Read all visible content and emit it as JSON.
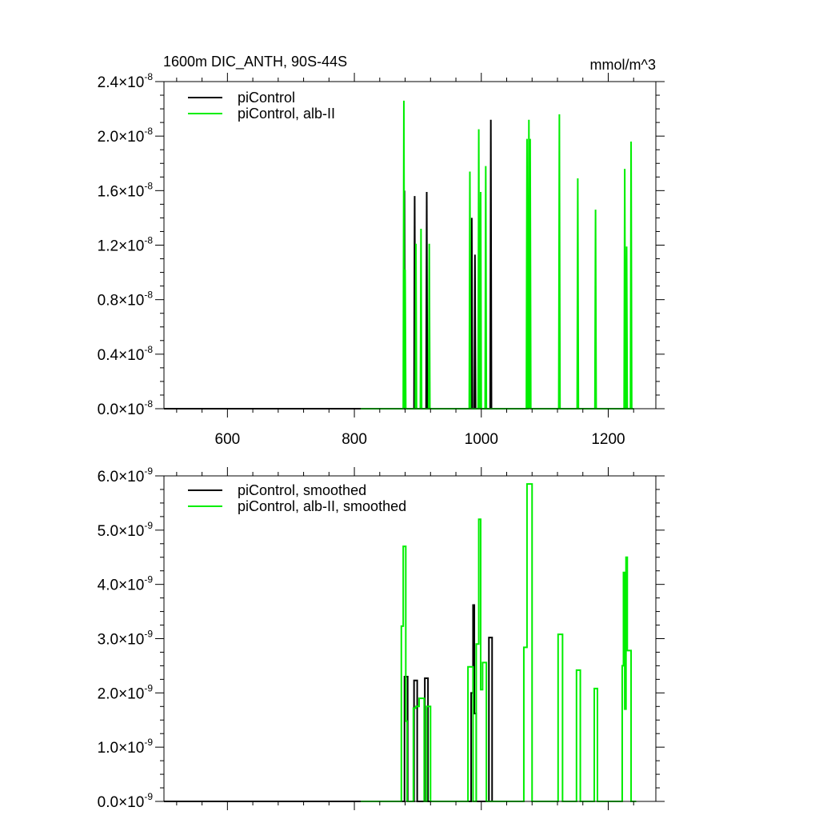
{
  "chart_data": [
    {
      "type": "line",
      "title_left": "1600m DIC_ANTH, 90S-44S",
      "title_right": "mmol/m^3",
      "xlim": [
        500,
        1275
      ],
      "x_ticks": [
        600,
        800,
        1000,
        1200
      ],
      "x_tick_labels": [
        "600",
        "800",
        "1000",
        "1200"
      ],
      "ylim": [
        0,
        2.4e-08
      ],
      "y_ticks": [
        0,
        4e-09,
        8e-09,
        1.2e-08,
        1.6e-08,
        2e-08,
        2.4e-08
      ],
      "y_tick_mantissas": [
        "0.0",
        "0.4",
        "0.8",
        "1.2",
        "1.6",
        "2.0",
        "2.4"
      ],
      "y_tick_times": "×10",
      "y_tick_exponent": "-8",
      "legend_position": "top-left",
      "line_start": 500,
      "line_end": 1250,
      "series": [
        {
          "name": "piControl",
          "color": "#000000",
          "range": [
            500,
            1020
          ],
          "spikes": [
            [
              879,
              1.6e-08
            ],
            [
              895,
              1.56e-08
            ],
            [
              914,
              1.59e-08
            ],
            [
              985,
              1.4e-08
            ],
            [
              990,
              1.13e-08
            ],
            [
              1015,
              2.12e-08
            ]
          ]
        },
        {
          "name": "piControl, alb-II",
          "color": "#00ee00",
          "range": [
            810,
            1240
          ],
          "spikes": [
            [
              878,
              2.26e-08
            ],
            [
              880,
              1.02e-08
            ],
            [
              897,
              1.21e-08
            ],
            [
              905,
              1.32e-08
            ],
            [
              918,
              1.21e-08
            ],
            [
              982,
              1.74e-08
            ],
            [
              996,
              2.05e-08
            ],
            [
              999,
              1.59e-08
            ],
            [
              1007,
              1.78e-08
            ],
            [
              1072,
              1.98e-08
            ],
            [
              1075,
              2.12e-08
            ],
            [
              1077,
              1.98e-08
            ],
            [
              1123,
              2.16e-08
            ],
            [
              1152,
              1.69e-08
            ],
            [
              1180,
              1.46e-08
            ],
            [
              1226,
              1.76e-08
            ],
            [
              1229,
              1.19e-08
            ],
            [
              1236,
              1.96e-08
            ]
          ]
        }
      ]
    },
    {
      "type": "line",
      "xlim": [
        500,
        1275
      ],
      "x_ticks": [
        600,
        800,
        1000,
        1200
      ],
      "ylim": [
        0,
        6e-09
      ],
      "y_ticks": [
        0,
        1e-09,
        2e-09,
        3e-09,
        4e-09,
        5e-09,
        6e-09
      ],
      "y_tick_mantissas": [
        "0.0",
        "1.0",
        "2.0",
        "3.0",
        "4.0",
        "5.0",
        "6.0"
      ],
      "y_tick_times": "×10",
      "y_tick_exponent": "-9",
      "legend_position": "top-left",
      "line_start": 500,
      "line_end": 1250,
      "series": [
        {
          "name": "piControl, smoothed",
          "color": "#000000",
          "range": [
            500,
            1022
          ],
          "steps": [
            [
              874,
              0
            ],
            [
              879,
              2.3e-09
            ],
            [
              884,
              0
            ],
            [
              894,
              2.23e-09
            ],
            [
              899,
              0
            ],
            [
              911,
              2.27e-09
            ],
            [
              916,
              0
            ],
            [
              984,
              2e-09
            ],
            [
              987,
              3.62e-09
            ],
            [
              989,
              1.62e-09
            ],
            [
              992,
              0
            ],
            [
              1012,
              3.02e-09
            ],
            [
              1017,
              0
            ]
          ]
        },
        {
          "name": "piControl, alb-II, smoothed",
          "color": "#00ee00",
          "range": [
            810,
            1244
          ],
          "steps": [
            [
              874,
              3.23e-09
            ],
            [
              877,
              4.7e-09
            ],
            [
              881,
              1.48e-09
            ],
            [
              883,
              0
            ],
            [
              893,
              1.72e-09
            ],
            [
              897,
              1.75e-09
            ],
            [
              902,
              1.9e-09
            ],
            [
              910,
              0
            ],
            [
              914,
              1.75e-09
            ],
            [
              920,
              0
            ],
            [
              979,
              2.48e-09
            ],
            [
              987,
              0
            ],
            [
              992,
              2.9e-09
            ],
            [
              996,
              5.2e-09
            ],
            [
              999,
              2.06e-09
            ],
            [
              1002,
              2.56e-09
            ],
            [
              1008,
              0
            ],
            [
              1067,
              2.84e-09
            ],
            [
              1072,
              5.85e-09
            ],
            [
              1080,
              0
            ],
            [
              1121,
              3.08e-09
            ],
            [
              1128,
              0
            ],
            [
              1150,
              2.42e-09
            ],
            [
              1156,
              0
            ],
            [
              1178,
              2.08e-09
            ],
            [
              1183,
              0
            ],
            [
              1222,
              2.5e-09
            ],
            [
              1224,
              4.22e-09
            ],
            [
              1226,
              1.7e-09
            ],
            [
              1228,
              4.5e-09
            ],
            [
              1230,
              2.78e-09
            ],
            [
              1236,
              0
            ]
          ]
        }
      ]
    }
  ]
}
